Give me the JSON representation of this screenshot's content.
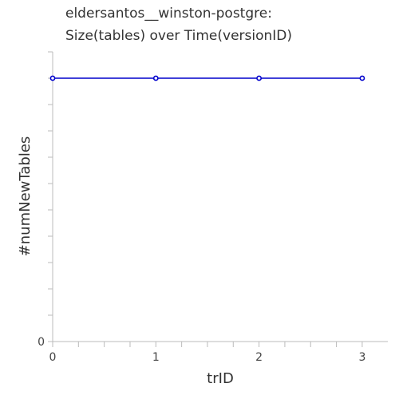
{
  "chart_data": {
    "type": "line",
    "title_lines": [
      "eldersantos__winston-postgre:",
      "Size(tables) over Time(versionID)"
    ],
    "xlabel": "trID",
    "ylabel": "#numNewTables",
    "x": [
      0,
      1,
      2,
      3
    ],
    "x_ticks": [
      "0",
      "1",
      "2",
      "3"
    ],
    "y_ticks": [
      "0"
    ],
    "grid": false,
    "series": [
      {
        "values": [
          10,
          10,
          10,
          10
        ],
        "color": "#0000cc",
        "marker": "circle"
      }
    ]
  }
}
